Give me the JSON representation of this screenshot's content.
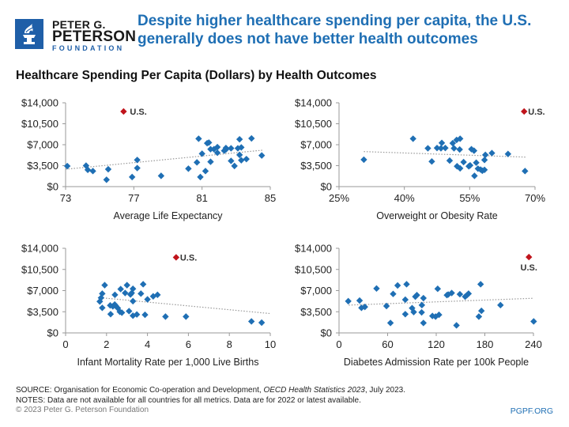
{
  "logo": {
    "line1": "PETER G.",
    "line2": "PETERSON",
    "line3": "FOUNDATION"
  },
  "headline": "Despite higher healthcare spending per capita, the U.S. generally does not have better health outcomes",
  "subhead": "Healthcare Spending Per Capita (Dollars) by Health Outcomes",
  "colors": {
    "point": "#1f6fb4",
    "us_point": "#c0141c",
    "trend": "#999999",
    "axis": "#999999",
    "headline": "#1f6fb4",
    "logo": "#1f5fa8"
  },
  "footer": {
    "source_prefix": "SOURCE: Organisation for Economic Co-operation and Development, ",
    "source_title": "OECD Health Statistics 2023",
    "source_suffix": ", July 2023.",
    "notes": "NOTES: Data are not available for all countries for all metrics. Data are for 2022 or latest available.",
    "copyright": "© 2023 Peter G. Peterson Foundation",
    "site": "PGPF.ORG"
  },
  "chart_data": [
    {
      "type": "scatter",
      "title": "",
      "xlabel": "Average Life Expectancy",
      "ylabel": "",
      "xlim": [
        73,
        85
      ],
      "ylim": [
        0,
        14000
      ],
      "xticks": [
        73,
        77,
        81,
        85
      ],
      "xtick_labels": [
        "73",
        "77",
        "81",
        "85"
      ],
      "yticks": [
        0,
        3500,
        7000,
        10500,
        14000
      ],
      "ytick_labels": [
        "$0",
        "$3,500",
        "$7,000",
        "$10,500",
        "$14,000"
      ],
      "us_point": {
        "label": "U.S.",
        "x": 76.4,
        "y": 12550
      },
      "trendline": {
        "x": [
          73.0,
          84.6
        ],
        "y": [
          2900,
          6100
        ]
      },
      "points": [
        [
          73.1,
          3430
        ],
        [
          74.2,
          3500
        ],
        [
          74.3,
          2800
        ],
        [
          74.6,
          2600
        ],
        [
          75.4,
          1150
        ],
        [
          75.5,
          2900
        ],
        [
          76.9,
          1600
        ],
        [
          77.2,
          4450
        ],
        [
          77.2,
          3100
        ],
        [
          78.6,
          1800
        ],
        [
          80.2,
          3000
        ],
        [
          80.7,
          4050
        ],
        [
          80.8,
          8000
        ],
        [
          80.9,
          1600
        ],
        [
          81.0,
          5500
        ],
        [
          81.2,
          2600
        ],
        [
          81.3,
          7250
        ],
        [
          81.4,
          7350
        ],
        [
          81.5,
          6250
        ],
        [
          81.5,
          4150
        ],
        [
          81.7,
          6250
        ],
        [
          81.9,
          6600
        ],
        [
          81.9,
          5650
        ],
        [
          82.3,
          6000
        ],
        [
          82.4,
          6450
        ],
        [
          82.4,
          6200
        ],
        [
          82.7,
          6400
        ],
        [
          82.7,
          4300
        ],
        [
          82.9,
          3450
        ],
        [
          83.1,
          6400
        ],
        [
          83.2,
          7900
        ],
        [
          83.2,
          5300
        ],
        [
          83.3,
          6550
        ],
        [
          83.3,
          4400
        ],
        [
          83.6,
          4600
        ],
        [
          83.9,
          8050
        ],
        [
          84.5,
          5200
        ]
      ]
    },
    {
      "type": "scatter",
      "title": "",
      "xlabel": "Overweight or Obesity Rate",
      "ylabel": "",
      "xlim": [
        25,
        70
      ],
      "ylim": [
        0,
        14000
      ],
      "xticks": [
        25,
        40,
        55,
        70
      ],
      "xtick_labels": [
        "25%",
        "40%",
        "55%",
        "70%"
      ],
      "yticks": [
        0,
        3500,
        7000,
        10500,
        14000
      ],
      "ytick_labels": [
        "$0",
        "$3,500",
        "$7,000",
        "$10,500",
        "$14,000"
      ],
      "us_point": {
        "label": "U.S.",
        "x": 67.5,
        "y": 12550
      },
      "trendline": {
        "x": [
          30.7,
          67.8
        ],
        "y": [
          5850,
          4930
        ]
      },
      "points": [
        [
          30.7,
          4500
        ],
        [
          42.0,
          8000
        ],
        [
          45.4,
          6400
        ],
        [
          46.3,
          4200
        ],
        [
          47.5,
          6450
        ],
        [
          48.4,
          6400
        ],
        [
          48.6,
          7300
        ],
        [
          49.4,
          6450
        ],
        [
          50.4,
          4350
        ],
        [
          51.1,
          7250
        ],
        [
          51.4,
          6400
        ],
        [
          52.0,
          7800
        ],
        [
          52.1,
          3400
        ],
        [
          52.7,
          6200
        ],
        [
          52.8,
          8000
        ],
        [
          52.8,
          3050
        ],
        [
          53.6,
          4100
        ],
        [
          54.8,
          3400
        ],
        [
          55.1,
          3550
        ],
        [
          55.4,
          6250
        ],
        [
          56.0,
          6000
        ],
        [
          56.1,
          1800
        ],
        [
          56.5,
          4000
        ],
        [
          56.9,
          3000
        ],
        [
          57.5,
          2850
        ],
        [
          57.9,
          2650
        ],
        [
          58.4,
          2800
        ],
        [
          58.4,
          4450
        ],
        [
          58.6,
          5300
        ],
        [
          60.1,
          5600
        ],
        [
          63.8,
          5450
        ],
        [
          67.7,
          2600
        ]
      ]
    },
    {
      "type": "scatter",
      "title": "",
      "xlabel": "Infant Mortality Rate per 1,000 Live Births",
      "ylabel": "",
      "xlim": [
        0,
        10
      ],
      "ylim": [
        0,
        14000
      ],
      "xticks": [
        0,
        2,
        4,
        6,
        8,
        10
      ],
      "xtick_labels": [
        "0",
        "2",
        "4",
        "6",
        "8",
        "10"
      ],
      "yticks": [
        0,
        3500,
        7000,
        10500,
        14000
      ],
      "ytick_labels": [
        "$0",
        "$3,500",
        "$7,000",
        "$10,500",
        "$14,000"
      ],
      "us_point": {
        "label": "U.S.",
        "x": 5.4,
        "y": 12500
      },
      "trendline": {
        "x": [
          1.7,
          10.0
        ],
        "y": [
          5830,
          3200
        ]
      },
      "points": [
        [
          1.67,
          5200
        ],
        [
          1.73,
          5800
        ],
        [
          1.79,
          6500
        ],
        [
          1.79,
          4150
        ],
        [
          1.91,
          7900
        ],
        [
          2.18,
          4550
        ],
        [
          2.2,
          3100
        ],
        [
          2.31,
          4400
        ],
        [
          2.4,
          4700
        ],
        [
          2.41,
          6300
        ],
        [
          2.46,
          4450
        ],
        [
          2.55,
          4100
        ],
        [
          2.65,
          3500
        ],
        [
          2.69,
          7250
        ],
        [
          2.75,
          3350
        ],
        [
          2.91,
          6600
        ],
        [
          3.0,
          7900
        ],
        [
          3.1,
          3600
        ],
        [
          3.17,
          6350
        ],
        [
          3.23,
          6600
        ],
        [
          3.29,
          7300
        ],
        [
          3.29,
          5250
        ],
        [
          3.29,
          2850
        ],
        [
          3.48,
          3050
        ],
        [
          3.68,
          6500
        ],
        [
          3.79,
          8050
        ],
        [
          3.88,
          3000
        ],
        [
          4.0,
          5550
        ],
        [
          4.28,
          6050
        ],
        [
          4.49,
          6300
        ],
        [
          4.88,
          2700
        ],
        [
          5.88,
          2700
        ],
        [
          9.08,
          1900
        ],
        [
          9.58,
          1700
        ]
      ]
    },
    {
      "type": "scatter",
      "title": "",
      "xlabel": "Diabetes Admission Rate per 100k People",
      "ylabel": "",
      "xlim": [
        0,
        240
      ],
      "ylim": [
        0,
        14000
      ],
      "xticks": [
        0,
        60,
        120,
        180,
        240
      ],
      "xtick_labels": [
        "0",
        "60",
        "120",
        "180",
        "240"
      ],
      "yticks": [
        0,
        3500,
        7000,
        10500,
        14000
      ],
      "ytick_labels": [
        "$0",
        "$3,500",
        "$7,000",
        "$10,500",
        "$14,000"
      ],
      "us_point": {
        "label": "U.S.",
        "x": 234.4,
        "y": 12550
      },
      "trendline": {
        "x": [
          12,
          240
        ],
        "y": [
          4600,
          5730
        ]
      },
      "points": [
        [
          11.4,
          5250
        ],
        [
          25.4,
          5350
        ],
        [
          27.7,
          4150
        ],
        [
          31.9,
          4300
        ],
        [
          46.3,
          7350
        ],
        [
          58.6,
          4450
        ],
        [
          63.5,
          1650
        ],
        [
          66.8,
          6450
        ],
        [
          72.3,
          7850
        ],
        [
          81.8,
          3100
        ],
        [
          81.8,
          5500
        ],
        [
          83.4,
          8050
        ],
        [
          90.2,
          4100
        ],
        [
          92.2,
          3450
        ],
        [
          94.2,
          6000
        ],
        [
          96.1,
          6250
        ],
        [
          102,
          3400
        ],
        [
          102.3,
          4600
        ],
        [
          104.2,
          1650
        ],
        [
          104.2,
          5750
        ],
        [
          115.3,
          2800
        ],
        [
          119.2,
          2700
        ],
        [
          121.8,
          7300
        ],
        [
          123.4,
          3000
        ],
        [
          133.2,
          6250
        ],
        [
          134.8,
          6350
        ],
        [
          139.1,
          6600
        ],
        [
          145,
          1250
        ],
        [
          149.2,
          6400
        ],
        [
          155.7,
          6000
        ],
        [
          158,
          6250
        ],
        [
          159.9,
          6500
        ],
        [
          172.6,
          2700
        ],
        [
          174.8,
          8050
        ],
        [
          175.8,
          3650
        ],
        [
          199.3,
          4600
        ],
        [
          240.3,
          1900
        ]
      ]
    }
  ]
}
